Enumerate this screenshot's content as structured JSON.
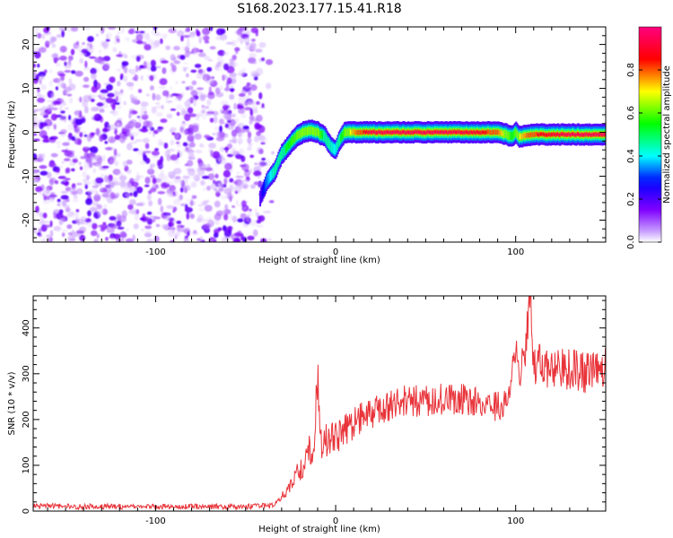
{
  "title": "S168.2023.177.15.41.R18",
  "chart_data": [
    {
      "type": "heatmap",
      "xlabel": "Height of straight line (km)",
      "ylabel": "Frequency (Hz)",
      "xlim": [
        -168,
        150
      ],
      "ylim": [
        -25,
        24
      ],
      "x_ticks": [
        -100,
        0,
        100
      ],
      "y_ticks": [
        -20,
        -10,
        0,
        10,
        20
      ],
      "colorbar": {
        "label": "Normalized spectral amplitude",
        "range": [
          0,
          1
        ],
        "ticks": [
          0.0,
          0.2,
          0.4,
          0.6,
          0.8
        ],
        "colormap": "hsv-rainbow",
        "colors": [
          "#ffffff",
          "#8000ff",
          "#0000ff",
          "#00ffff",
          "#00ff00",
          "#ffff00",
          "#ff0000",
          "#ff0080"
        ]
      },
      "noise_region": {
        "x_range": [
          -168,
          -40
        ],
        "y_range": [
          -25,
          24
        ],
        "amplitude_range": [
          0.02,
          0.2
        ]
      },
      "signal_track": {
        "x": [
          -42,
          -38,
          -34,
          -30,
          -26,
          -22,
          -18,
          -14,
          -10,
          -6,
          -3,
          0,
          2,
          5,
          10,
          20,
          40,
          60,
          80,
          90,
          95,
          98,
          100,
          102,
          110,
          130,
          150
        ],
        "frequency": [
          -15,
          -11,
          -9,
          -5,
          -3,
          -1,
          0,
          0.5,
          0,
          -1,
          -3,
          -4,
          -2,
          0,
          0,
          0,
          0,
          0,
          0,
          0,
          -0.5,
          -1,
          0,
          -1,
          -0.5,
          -0.5,
          -0.5
        ],
        "amplitude": [
          0.2,
          0.35,
          0.45,
          0.5,
          0.55,
          0.6,
          0.65,
          0.7,
          0.65,
          0.5,
          0.45,
          0.4,
          0.5,
          0.6,
          0.75,
          0.95,
          0.95,
          0.95,
          0.9,
          0.8,
          0.65,
          0.55,
          0.6,
          0.7,
          0.85,
          0.95,
          0.95
        ]
      }
    },
    {
      "type": "line",
      "xlabel": "Height of straight line (km)",
      "ylabel": "SNR (10 * v/v)",
      "xlim": [
        -168,
        150
      ],
      "ylim": [
        0,
        470
      ],
      "x_ticks": [
        -100,
        0,
        100
      ],
      "y_ticks": [
        0,
        100,
        200,
        300,
        400
      ],
      "color": "#e8343a",
      "series": [
        {
          "x": [
            -168,
            -150,
            -130,
            -110,
            -90,
            -70,
            -50,
            -35,
            -28,
            -25,
            -22,
            -19,
            -16,
            -12,
            -10,
            -8,
            -5,
            0,
            5,
            10,
            15,
            20,
            25,
            30,
            35,
            40,
            45,
            50,
            60,
            70,
            80,
            90,
            95,
            100,
            102,
            105,
            108,
            110,
            115,
            120,
            130,
            140,
            150
          ],
          "y": [
            12,
            10,
            10,
            9,
            10,
            10,
            10,
            12,
            40,
            60,
            80,
            90,
            120,
            150,
            270,
            140,
            150,
            160,
            175,
            190,
            205,
            215,
            225,
            230,
            235,
            245,
            240,
            240,
            245,
            245,
            235,
            230,
            240,
            350,
            300,
            330,
            465,
            320,
            320,
            310,
            310,
            300,
            315
          ]
        }
      ]
    }
  ]
}
